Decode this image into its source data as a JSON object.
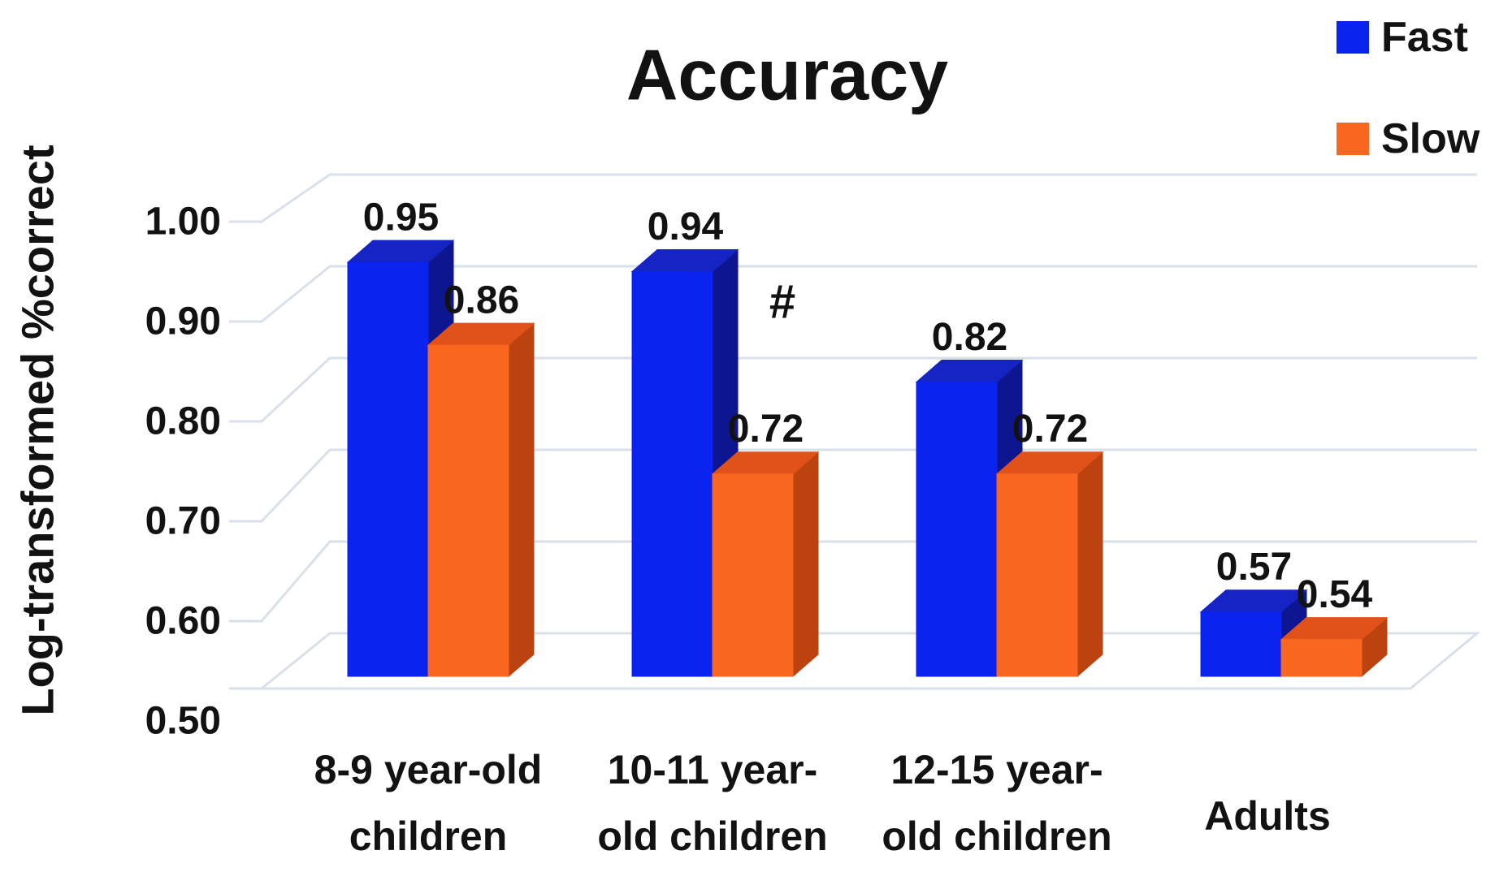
{
  "chart_data": {
    "type": "bar",
    "projection": "3d",
    "title": "Accuracy",
    "ylabel": "Log-transformed %correct",
    "xlabel": "",
    "ylim": [
      0.5,
      1.0
    ],
    "grid": true,
    "legend_position": "top-right",
    "categories": [
      "8-9 year-old children",
      "10-11 year-old children",
      "12-15 year-old children",
      "Adults"
    ],
    "category_lines": [
      [
        "8-9 year-old",
        "children"
      ],
      [
        "10-11 year-",
        "old children"
      ],
      [
        "12-15 year-",
        "old children"
      ],
      [
        "Adults"
      ]
    ],
    "series": [
      {
        "name": "Fast",
        "values": [
          0.95,
          0.94,
          0.82,
          0.57
        ]
      },
      {
        "name": "Slow",
        "values": [
          0.86,
          0.72,
          0.72,
          0.54
        ]
      }
    ],
    "value_labels": [
      [
        "0.95",
        "0.94",
        "0.82",
        "0.57"
      ],
      [
        "0.86",
        "0.72",
        "0.72",
        "0.54"
      ]
    ],
    "yticks": [
      {
        "label": "1.00",
        "value": 1.0
      },
      {
        "label": "0.90",
        "value": 0.9
      },
      {
        "label": "0.80",
        "value": 0.8
      },
      {
        "label": "0.70",
        "value": 0.7
      },
      {
        "label": "0.60",
        "value": 0.6
      },
      {
        "label": "0.50",
        "value": 0.5
      }
    ],
    "annotations": [
      {
        "text": "#",
        "series": "Slow",
        "category_index": 1,
        "note": "printed right of Fast bar above Slow bar of 10-11 year-old group"
      }
    ],
    "legend": {
      "entries": [
        {
          "label": "Fast",
          "color": "#0A23EE"
        },
        {
          "label": "Slow",
          "color": "#F8661F"
        }
      ]
    },
    "colors": {
      "fast_front": "#0A23EE",
      "fast_top": "#1624C4",
      "fast_side": "#0D1690",
      "slow_front": "#F8661F",
      "slow_top": "#E1521A",
      "slow_side": "#BC4310",
      "gridline": "#D9E0EA",
      "text": "#121212",
      "background": "#FFFFFF"
    }
  }
}
